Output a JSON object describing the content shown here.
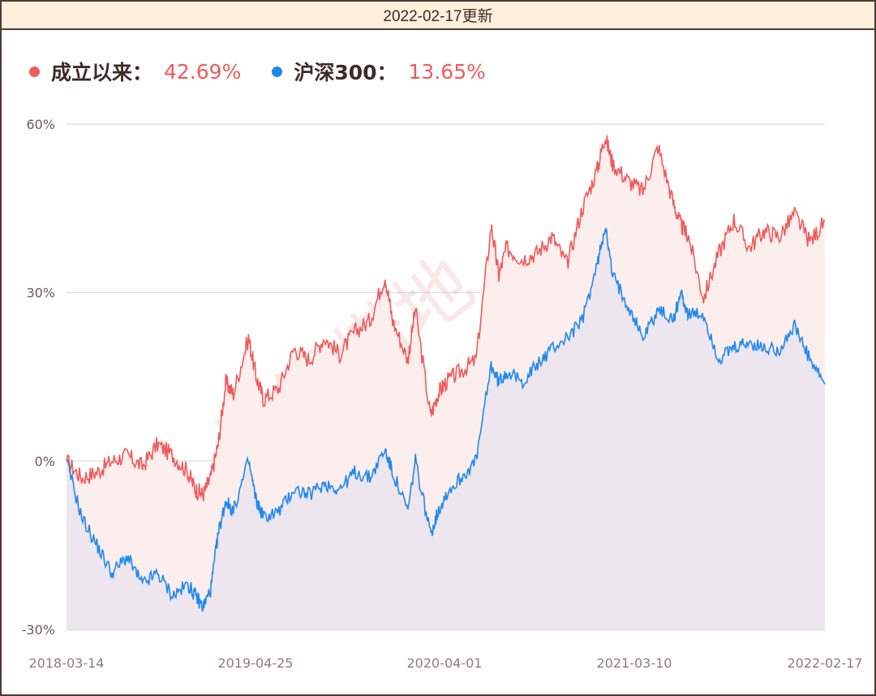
{
  "header": {
    "title": "2022-02-17更新"
  },
  "legend": [
    {
      "label": "成立以来：",
      "value": "42.69%",
      "dot_color": "#f15a5a",
      "value_color": "#f15a5a"
    },
    {
      "label": "沪深300：",
      "value": "13.65%",
      "dot_color": "#1e88f0",
      "value_color": "#f15a5a"
    }
  ],
  "watermark": "搞钱塔地",
  "colors": {
    "fund_line": "#f15a5a",
    "fund_fill": "#fdeeee",
    "index_line": "#1e88f0",
    "index_fill": "#ede6ef",
    "grid": "#d9d9d9",
    "frame": "#4e3a33",
    "header_bg": "#fef0dd"
  },
  "axis": {
    "y_ticks": [
      "60%",
      "30%",
      "0%",
      "-30%"
    ],
    "x_ticks": [
      "2018-03-14",
      "2019-04-25",
      "2020-04-01",
      "2021-03-10",
      "2022-02-17"
    ]
  },
  "chart_data": {
    "type": "area",
    "title": "",
    "xlabel": "",
    "ylabel": "",
    "ylim": [
      -30,
      60
    ],
    "grid": true,
    "legend_position": "top-left",
    "x_range": [
      "2018-03-14",
      "2022-02-17"
    ],
    "x_tick_labels": [
      "2018-03-14",
      "2019-04-25",
      "2020-04-01",
      "2021-03-10",
      "2022-02-17"
    ],
    "y_tick_labels": [
      "-30%",
      "0%",
      "30%",
      "60%"
    ],
    "x_positions_normalized": [
      0.0,
      0.02,
      0.04,
      0.06,
      0.08,
      0.1,
      0.12,
      0.14,
      0.16,
      0.17,
      0.18,
      0.19,
      0.2,
      0.21,
      0.22,
      0.24,
      0.25,
      0.26,
      0.28,
      0.3,
      0.32,
      0.34,
      0.36,
      0.38,
      0.4,
      0.42,
      0.43,
      0.45,
      0.46,
      0.48,
      0.49,
      0.5,
      0.52,
      0.54,
      0.56,
      0.57,
      0.58,
      0.6,
      0.62,
      0.64,
      0.66,
      0.68,
      0.7,
      0.71,
      0.72,
      0.74,
      0.76,
      0.78,
      0.8,
      0.81,
      0.82,
      0.84,
      0.86,
      0.88,
      0.9,
      0.92,
      0.94,
      0.96,
      0.98,
      1.0
    ],
    "series": [
      {
        "name": "成立以来",
        "final_value": 42.69,
        "values": [
          0,
          -3,
          -2,
          0,
          1,
          -1,
          3,
          1,
          -2,
          -5,
          -6,
          -3,
          3,
          14,
          12,
          22,
          15,
          11,
          13,
          20,
          18,
          22,
          19,
          23,
          25,
          33,
          25,
          18,
          27,
          8,
          12,
          14,
          16,
          18,
          42,
          33,
          38,
          36,
          37,
          40,
          35,
          45,
          52,
          58,
          53,
          50,
          48,
          56,
          46,
          42,
          40,
          29,
          37,
          43,
          38,
          41,
          40,
          44,
          39,
          42.69
        ]
      },
      {
        "name": "沪深300",
        "final_value": 13.65,
        "values": [
          0,
          -10,
          -15,
          -20,
          -17,
          -22,
          -20,
          -24,
          -22,
          -24,
          -26,
          -23,
          -13,
          -7,
          -9,
          0,
          -7,
          -10,
          -9,
          -5,
          -6,
          -4,
          -5,
          -2,
          -3,
          2,
          -2,
          -9,
          0,
          -13,
          -9,
          -6,
          -3,
          0,
          17,
          14,
          16,
          14,
          17,
          20,
          22,
          25,
          35,
          42,
          33,
          28,
          22,
          27,
          25,
          30,
          26,
          26,
          18,
          20,
          21,
          20,
          20,
          24,
          18,
          13.65
        ]
      }
    ]
  }
}
